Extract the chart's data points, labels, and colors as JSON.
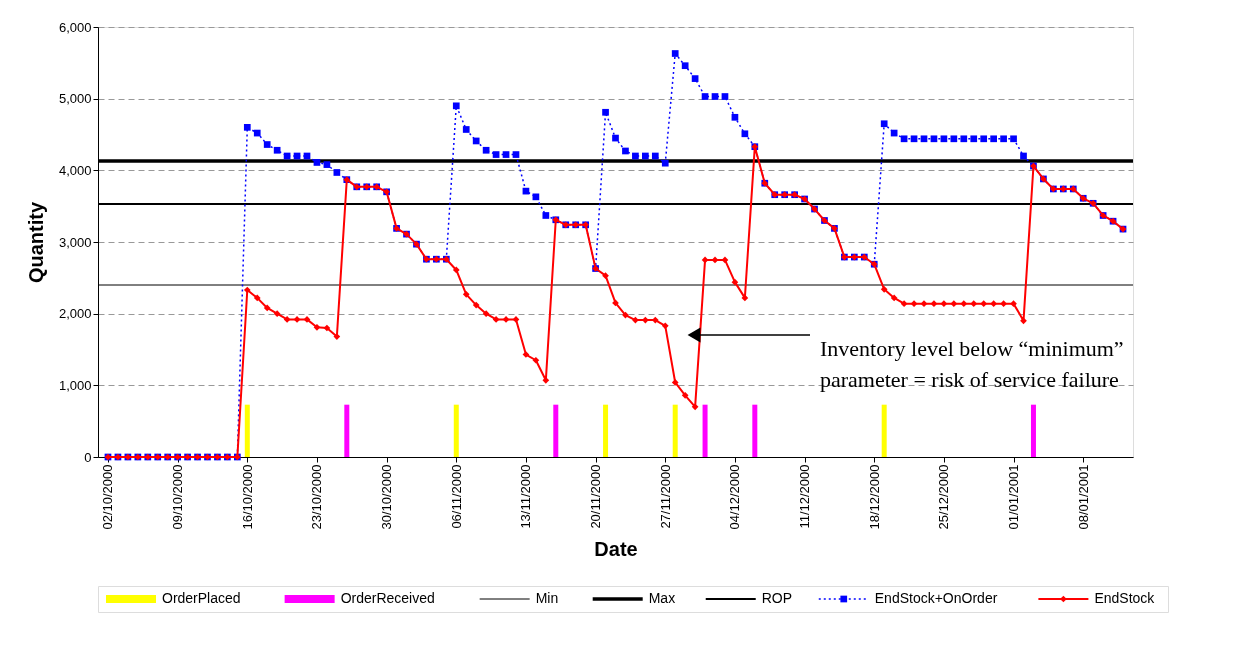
{
  "chart_data": {
    "type": "line",
    "xlabel": "Date",
    "ylabel": "Quantity",
    "x": [
      "2000-10-02",
      "2000-10-03",
      "2000-10-04",
      "2000-10-05",
      "2000-10-06",
      "2000-10-07",
      "2000-10-08",
      "2000-10-09",
      "2000-10-10",
      "2000-10-11",
      "2000-10-12",
      "2000-10-13",
      "2000-10-14",
      "2000-10-15",
      "2000-10-16",
      "2000-10-17",
      "2000-10-18",
      "2000-10-19",
      "2000-10-20",
      "2000-10-21",
      "2000-10-22",
      "2000-10-23",
      "2000-10-24",
      "2000-10-25",
      "2000-10-26",
      "2000-10-27",
      "2000-10-28",
      "2000-10-29",
      "2000-10-30",
      "2000-10-31",
      "2000-11-01",
      "2000-11-02",
      "2000-11-03",
      "2000-11-04",
      "2000-11-05",
      "2000-11-06",
      "2000-11-07",
      "2000-11-08",
      "2000-11-09",
      "2000-11-10",
      "2000-11-11",
      "2000-11-12",
      "2000-11-13",
      "2000-11-14",
      "2000-11-15",
      "2000-11-16",
      "2000-11-17",
      "2000-11-18",
      "2000-11-19",
      "2000-11-20",
      "2000-11-21",
      "2000-11-22",
      "2000-11-23",
      "2000-11-24",
      "2000-11-25",
      "2000-11-26",
      "2000-11-27",
      "2000-11-28",
      "2000-11-29",
      "2000-11-30",
      "2000-12-01",
      "2000-12-02",
      "2000-12-03",
      "2000-12-04",
      "2000-12-05",
      "2000-12-06",
      "2000-12-07",
      "2000-12-08",
      "2000-12-09",
      "2000-12-10",
      "2000-12-11",
      "2000-12-12",
      "2000-12-13",
      "2000-12-14",
      "2000-12-15",
      "2000-12-16",
      "2000-12-17",
      "2000-12-18",
      "2000-12-19",
      "2000-12-20",
      "2000-12-21",
      "2000-12-22",
      "2000-12-23",
      "2000-12-24",
      "2000-12-25",
      "2000-12-26",
      "2000-12-27",
      "2000-12-28",
      "2000-12-29",
      "2000-12-30",
      "2000-12-31",
      "2001-01-01",
      "2001-01-02",
      "2001-01-03",
      "2001-01-04",
      "2001-01-05",
      "2001-01-06",
      "2001-01-07",
      "2001-01-08",
      "2001-01-09",
      "2001-01-10",
      "2001-01-11",
      "2001-01-12"
    ],
    "series": [
      {
        "name": "OrderPlaced",
        "type": "bar",
        "color": "#ffff00",
        "values": [
          null,
          null,
          null,
          null,
          null,
          null,
          null,
          null,
          null,
          null,
          null,
          null,
          null,
          null,
          730,
          null,
          null,
          null,
          null,
          null,
          null,
          null,
          null,
          null,
          null,
          null,
          null,
          null,
          null,
          null,
          null,
          null,
          null,
          null,
          null,
          730,
          null,
          null,
          null,
          null,
          null,
          null,
          null,
          null,
          null,
          null,
          null,
          null,
          null,
          null,
          730,
          null,
          null,
          null,
          null,
          null,
          null,
          730,
          null,
          null,
          null,
          null,
          null,
          null,
          null,
          null,
          null,
          null,
          null,
          null,
          null,
          null,
          null,
          null,
          null,
          null,
          null,
          null,
          730,
          null,
          null,
          null,
          null,
          null,
          null,
          null,
          null,
          null,
          null,
          null,
          null,
          null,
          null,
          null,
          null,
          null,
          null,
          null,
          null,
          null,
          null,
          null,
          null
        ]
      },
      {
        "name": "OrderReceived",
        "type": "bar",
        "color": "#ff00ff",
        "values": [
          null,
          null,
          null,
          null,
          null,
          null,
          null,
          null,
          null,
          null,
          null,
          null,
          null,
          null,
          null,
          null,
          null,
          null,
          null,
          null,
          null,
          null,
          null,
          null,
          730,
          null,
          null,
          null,
          null,
          null,
          null,
          null,
          null,
          null,
          null,
          null,
          null,
          null,
          null,
          null,
          null,
          null,
          null,
          null,
          null,
          730,
          null,
          null,
          null,
          null,
          null,
          null,
          null,
          null,
          null,
          null,
          null,
          null,
          null,
          null,
          730,
          null,
          null,
          null,
          null,
          730,
          null,
          null,
          null,
          null,
          null,
          null,
          null,
          null,
          null,
          null,
          null,
          null,
          null,
          null,
          null,
          null,
          null,
          null,
          null,
          null,
          null,
          null,
          null,
          null,
          null,
          null,
          null,
          730,
          null,
          null,
          null,
          null,
          null,
          null,
          null,
          null,
          null
        ]
      },
      {
        "name": "EndStock+OnOrder",
        "color": "#0000ff",
        "marker": "square",
        "line_style": "dotted",
        "values": [
          0,
          0,
          0,
          0,
          0,
          0,
          0,
          0,
          0,
          0,
          0,
          0,
          0,
          0,
          4600,
          4520,
          4360,
          4280,
          4200,
          4200,
          4200,
          4110,
          4080,
          3970,
          3870,
          3770,
          3770,
          3770,
          3700,
          3190,
          3110,
          2970,
          2760,
          2760,
          2760,
          4900,
          4570,
          4410,
          4280,
          4220,
          4220,
          4220,
          3710,
          3630,
          3370,
          3310,
          3240,
          3240,
          3240,
          2630,
          4810,
          4450,
          4270,
          4200,
          4200,
          4200,
          4100,
          5630,
          5460,
          5280,
          5030,
          5030,
          5030,
          4740,
          4510,
          4330,
          3820,
          3660,
          3660,
          3660,
          3600,
          3460,
          3300,
          3190,
          2790,
          2790,
          2790,
          2690,
          4650,
          4520,
          4440,
          4440,
          4440,
          4440,
          4440,
          4440,
          4440,
          4440,
          4440,
          4440,
          4440,
          4440,
          4200,
          4060,
          3880,
          3740,
          3740,
          3740,
          3610,
          3540,
          3370,
          3290,
          3180
        ]
      },
      {
        "name": "EndStock",
        "color": "#ff0000",
        "marker": "diamond",
        "line_style": "solid",
        "values": [
          0,
          0,
          0,
          0,
          0,
          0,
          0,
          0,
          0,
          0,
          0,
          0,
          0,
          0,
          2330,
          2220,
          2080,
          2000,
          1920,
          1920,
          1920,
          1810,
          1800,
          1680,
          3870,
          3770,
          3770,
          3770,
          3700,
          3190,
          3110,
          2970,
          2760,
          2760,
          2760,
          2610,
          2270,
          2120,
          2000,
          1920,
          1920,
          1920,
          1430,
          1350,
          1070,
          3310,
          3240,
          3240,
          3240,
          2630,
          2530,
          2150,
          1980,
          1910,
          1910,
          1910,
          1830,
          1040,
          860,
          700,
          2750,
          2750,
          2750,
          2440,
          2220,
          4330,
          3820,
          3660,
          3660,
          3660,
          3600,
          3460,
          3300,
          3190,
          2790,
          2790,
          2790,
          2690,
          2340,
          2220,
          2140,
          2140,
          2140,
          2140,
          2140,
          2140,
          2140,
          2140,
          2140,
          2140,
          2140,
          2140,
          1900,
          4060,
          3880,
          3740,
          3740,
          3740,
          3610,
          3540,
          3370,
          3290,
          3180
        ]
      }
    ],
    "ref_lines": [
      {
        "axis": "y",
        "value": 2400,
        "label": "Min",
        "color": "#000000"
      },
      {
        "axis": "y",
        "value": 4130,
        "label": "Max",
        "color": "#000000"
      },
      {
        "axis": "y",
        "value": 3530,
        "label": "ROP",
        "color": "#000000"
      }
    ],
    "ylim": [
      0,
      6000
    ],
    "yticks": [
      0,
      {
        "value": 1000,
        "label": "1,000"
      },
      {
        "value": 2000,
        "label": "2,000"
      },
      {
        "value": 3000,
        "label": "3,000"
      },
      {
        "value": 4000,
        "label": "4,000"
      },
      {
        "value": 5000,
        "label": "5,000"
      },
      {
        "value": 6000,
        "label": "6,000"
      }
    ],
    "xlim": [
      "2000-10-01T12:00",
      "2001-01-12T12:00"
    ],
    "xticks": [
      {
        "value": "2000-10-02",
        "label": "02/10/2000"
      },
      {
        "value": "2000-10-09",
        "label": "09/10/2000"
      },
      {
        "value": "2000-10-16",
        "label": "16/10/2000"
      },
      {
        "value": "2000-10-23",
        "label": "23/10/2000"
      },
      {
        "value": "2000-10-30",
        "label": "30/10/2000"
      },
      {
        "value": "2000-11-06",
        "label": "06/11/2000"
      },
      {
        "value": "2000-11-13",
        "label": "13/11/2000"
      },
      {
        "value": "2000-11-20",
        "label": "20/11/2000"
      },
      {
        "value": "2000-11-27",
        "label": "27/11/2000"
      },
      {
        "value": "2000-12-04",
        "label": "04/12/2000"
      },
      {
        "value": "2000-12-11",
        "label": "11/12/2000"
      },
      {
        "value": "2000-12-18",
        "label": "18/12/2000"
      },
      {
        "value": "2000-12-25",
        "label": "25/12/2000"
      },
      {
        "value": "2001-01-01",
        "label": "01/01/2001"
      },
      {
        "value": "2001-01-08",
        "label": "08/01/2001"
      }
    ],
    "annotations": [
      "Inventory level below “minimum”\nparameter = risk of service failure"
    ],
    "grid": "y",
    "legend": "bottom"
  }
}
